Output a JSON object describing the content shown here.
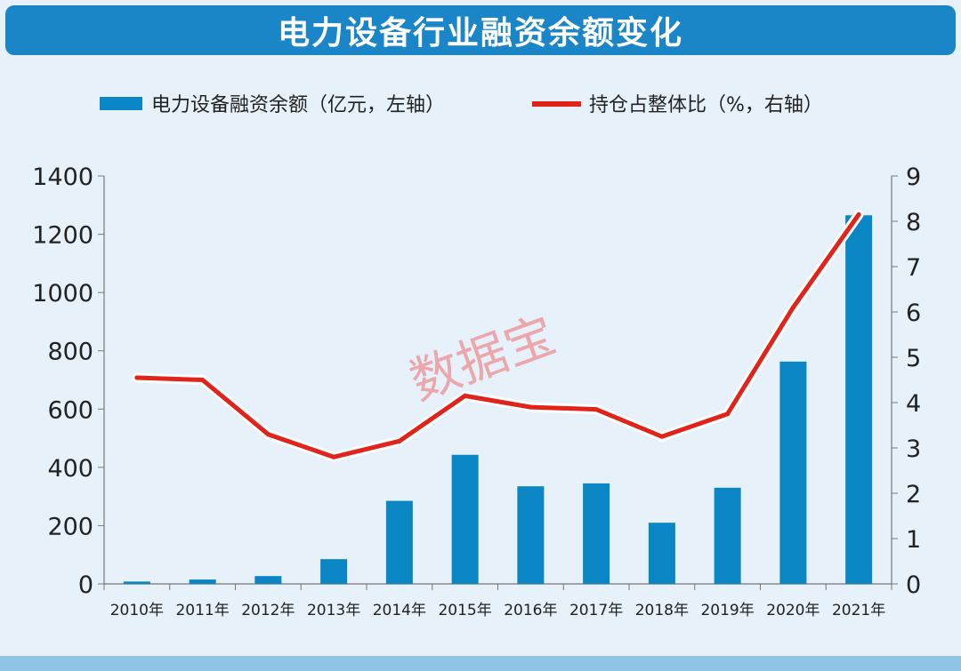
{
  "chart_data": {
    "type": "bar+line",
    "title": "电力设备行业融资余额变化",
    "categories": [
      "2010年",
      "2011年",
      "2012年",
      "2013年",
      "2014年",
      "2015年",
      "2016年",
      "2017年",
      "2018年",
      "2019年",
      "2020年",
      "2021年"
    ],
    "series": [
      {
        "name": "电力设备融资余额（亿元，左轴）",
        "type": "bar",
        "axis": "left",
        "color": "#0a86c4",
        "values": [
          8,
          15,
          27,
          85,
          285,
          443,
          335,
          345,
          210,
          330,
          763,
          1265
        ]
      },
      {
        "name": "持仓占整体比（%，右轴）",
        "type": "line",
        "axis": "right",
        "color": "#e2231a",
        "values": [
          4.55,
          4.5,
          3.3,
          2.8,
          3.15,
          4.15,
          3.9,
          3.85,
          3.25,
          3.75,
          6.1,
          8.15
        ]
      }
    ],
    "y_left": {
      "min": 0,
      "max": 1400,
      "ticks": [
        0,
        200,
        400,
        600,
        800,
        1000,
        1200,
        1400
      ]
    },
    "y_right": {
      "min": 0,
      "max": 9,
      "ticks": [
        0,
        1,
        2,
        3,
        4,
        5,
        6,
        7,
        8,
        9
      ]
    },
    "legend_position": "top",
    "watermark": "数据宝"
  }
}
